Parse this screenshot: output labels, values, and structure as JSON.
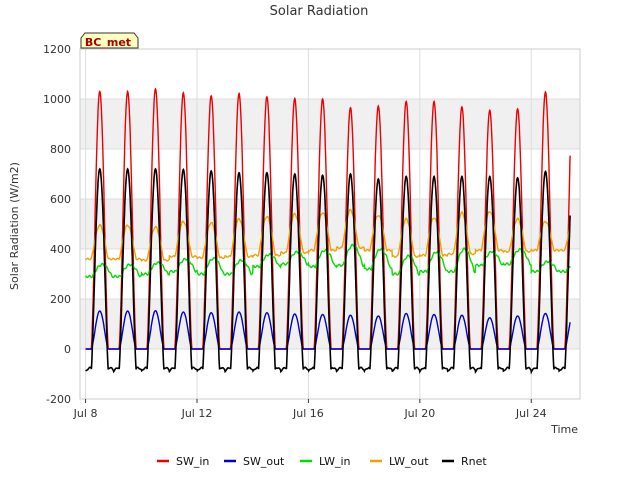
{
  "chart_data": {
    "type": "line",
    "title": "Solar Radiation",
    "xlabel": "Time",
    "ylabel": "Solar Radiation (W/m2)",
    "badge": "BC_met",
    "x_start_day": 8,
    "x_end_day": 25.4,
    "xticks": [
      {
        "day": 8,
        "label": "Jul 8"
      },
      {
        "day": 12,
        "label": "Jul 12"
      },
      {
        "day": 16,
        "label": "Jul 16"
      },
      {
        "day": 20,
        "label": "Jul 20"
      },
      {
        "day": 24,
        "label": "Jul 24"
      }
    ],
    "yticks": [
      -200,
      0,
      200,
      400,
      600,
      800,
      1000,
      1200
    ],
    "ylim": [
      -200,
      1200
    ],
    "grid": true,
    "background_bands": true,
    "legend_position": "bottom",
    "series": [
      {
        "name": "SW_in",
        "color": "#ee0000",
        "daily_peak": [
          1030,
          1040,
          1025,
          1012,
          1022,
          1008,
          1002,
          1000,
          965,
          972,
          990,
          990,
          968,
          955,
          960,
          1028
        ],
        "night": 0
      },
      {
        "name": "SW_out",
        "color": "#0000cc",
        "daily_peak": [
          152,
          153,
          148,
          145,
          148,
          145,
          140,
          138,
          135,
          132,
          142,
          138,
          135,
          125,
          132,
          142
        ],
        "night": 0
      },
      {
        "name": "LW_in",
        "color": "#00dd00",
        "daily_peak": [
          338,
          345,
          360,
          362,
          355,
          378,
          388,
          395,
          415,
          400,
          372,
          388,
          400,
          390,
          398,
          350
        ],
        "night": [
          290,
          300,
          310,
          300,
          300,
          330,
          340,
          330,
          335,
          320,
          300,
          310,
          310,
          335,
          340,
          310
        ]
      },
      {
        "name": "LW_out",
        "color": "#f0a000",
        "daily_peak": [
          495,
          488,
          510,
          505,
          520,
          530,
          540,
          545,
          555,
          535,
          520,
          525,
          545,
          550,
          520,
          510
        ],
        "night": [
          360,
          355,
          370,
          365,
          370,
          375,
          385,
          395,
          405,
          395,
          370,
          375,
          380,
          395,
          390,
          395
        ]
      },
      {
        "name": "Rnet",
        "color": "#000000",
        "daily_peak": [
          720,
          720,
          718,
          712,
          705,
          705,
          700,
          695,
          700,
          680,
          690,
          690,
          690,
          690,
          685,
          710
        ],
        "night": -90
      }
    ]
  }
}
